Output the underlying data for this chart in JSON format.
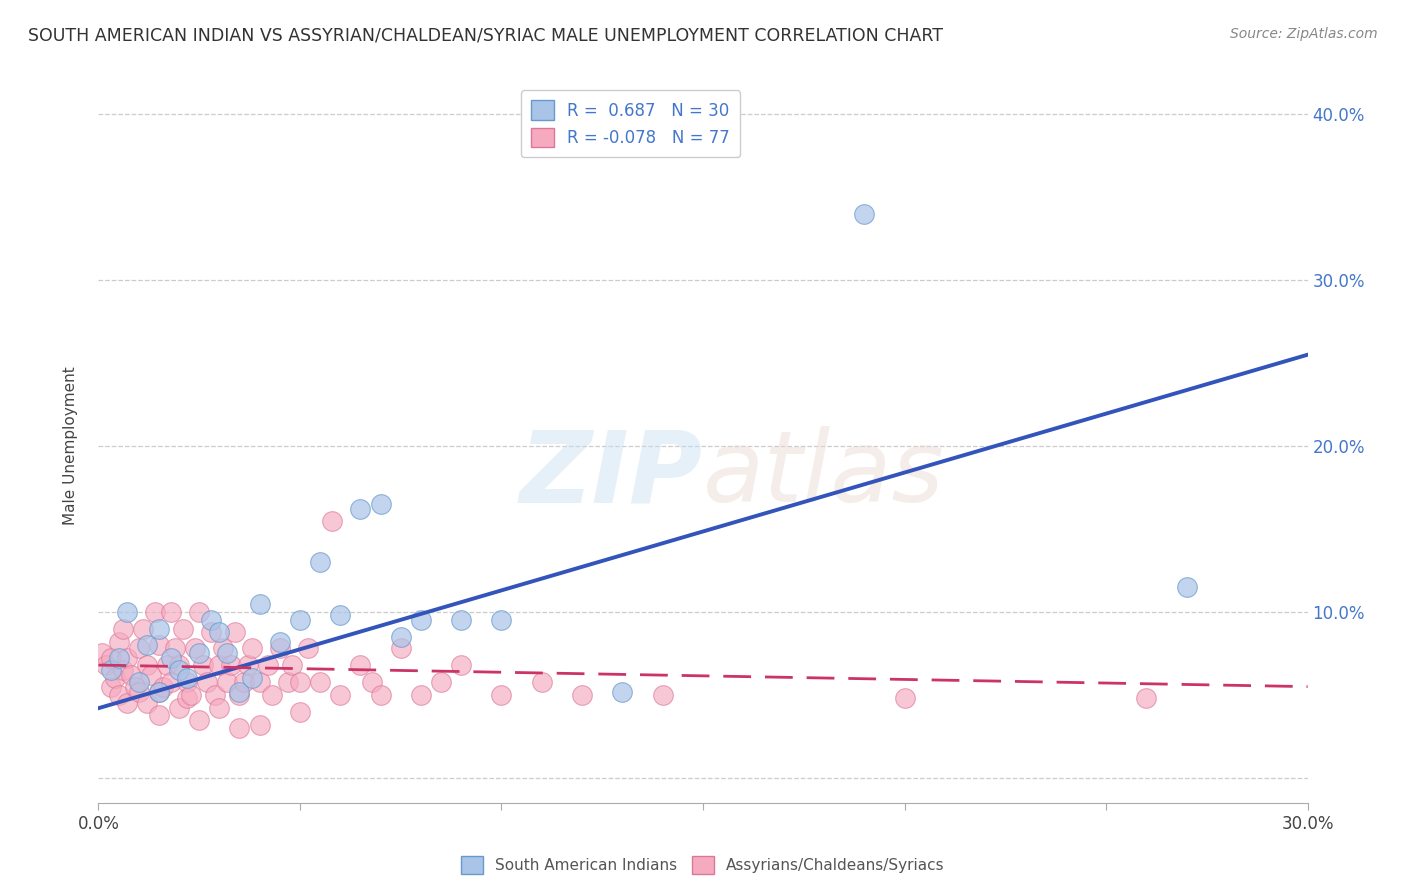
{
  "title": "SOUTH AMERICAN INDIAN VS ASSYRIAN/CHALDEAN/SYRIAC MALE UNEMPLOYMENT CORRELATION CHART",
  "source": "Source: ZipAtlas.com",
  "ylabel": "Male Unemployment",
  "xlim": [
    0.0,
    0.3
  ],
  "ylim": [
    -0.015,
    0.415
  ],
  "yticks": [
    0.0,
    0.1,
    0.2,
    0.3,
    0.4
  ],
  "xticks": [
    0.0,
    0.05,
    0.1,
    0.15,
    0.2,
    0.25,
    0.3
  ],
  "xtick_labels_left": "0.0%",
  "xtick_labels_right": "30.0%",
  "ytick_labels_right": [
    "",
    "10.0%",
    "20.0%",
    "30.0%",
    "40.0%"
  ],
  "blue_R": "0.687",
  "blue_N": "30",
  "pink_R": "-0.078",
  "pink_N": "77",
  "blue_scatter_color": "#aac4e8",
  "pink_scatter_color": "#f5aabf",
  "blue_edge_color": "#6699cc",
  "pink_edge_color": "#dd7799",
  "blue_line_color": "#3355bb",
  "pink_line_color": "#cc3366",
  "legend_label_blue": "South American Indians",
  "legend_label_pink": "Assyrians/Chaldeans/Syriacs",
  "blue_scatter": [
    [
      0.003,
      0.065
    ],
    [
      0.005,
      0.072
    ],
    [
      0.007,
      0.1
    ],
    [
      0.01,
      0.058
    ],
    [
      0.012,
      0.08
    ],
    [
      0.015,
      0.052
    ],
    [
      0.015,
      0.09
    ],
    [
      0.018,
      0.072
    ],
    [
      0.02,
      0.065
    ],
    [
      0.022,
      0.06
    ],
    [
      0.025,
      0.075
    ],
    [
      0.028,
      0.095
    ],
    [
      0.03,
      0.088
    ],
    [
      0.032,
      0.075
    ],
    [
      0.035,
      0.052
    ],
    [
      0.038,
      0.06
    ],
    [
      0.04,
      0.105
    ],
    [
      0.045,
      0.082
    ],
    [
      0.05,
      0.095
    ],
    [
      0.055,
      0.13
    ],
    [
      0.06,
      0.098
    ],
    [
      0.065,
      0.162
    ],
    [
      0.07,
      0.165
    ],
    [
      0.075,
      0.085
    ],
    [
      0.08,
      0.095
    ],
    [
      0.09,
      0.095
    ],
    [
      0.1,
      0.095
    ],
    [
      0.13,
      0.052
    ],
    [
      0.19,
      0.34
    ],
    [
      0.27,
      0.115
    ]
  ],
  "pink_scatter": [
    [
      0.001,
      0.075
    ],
    [
      0.002,
      0.068
    ],
    [
      0.003,
      0.072
    ],
    [
      0.003,
      0.055
    ],
    [
      0.004,
      0.06
    ],
    [
      0.005,
      0.082
    ],
    [
      0.005,
      0.05
    ],
    [
      0.006,
      0.09
    ],
    [
      0.006,
      0.065
    ],
    [
      0.007,
      0.072
    ],
    [
      0.007,
      0.045
    ],
    [
      0.008,
      0.062
    ],
    [
      0.009,
      0.055
    ],
    [
      0.01,
      0.078
    ],
    [
      0.01,
      0.052
    ],
    [
      0.011,
      0.09
    ],
    [
      0.012,
      0.068
    ],
    [
      0.012,
      0.045
    ],
    [
      0.013,
      0.062
    ],
    [
      0.014,
      0.1
    ],
    [
      0.015,
      0.08
    ],
    [
      0.015,
      0.052
    ],
    [
      0.015,
      0.038
    ],
    [
      0.016,
      0.055
    ],
    [
      0.017,
      0.068
    ],
    [
      0.018,
      0.058
    ],
    [
      0.018,
      0.1
    ],
    [
      0.019,
      0.078
    ],
    [
      0.02,
      0.068
    ],
    [
      0.02,
      0.042
    ],
    [
      0.021,
      0.09
    ],
    [
      0.022,
      0.058
    ],
    [
      0.022,
      0.048
    ],
    [
      0.023,
      0.05
    ],
    [
      0.024,
      0.078
    ],
    [
      0.025,
      0.1
    ],
    [
      0.025,
      0.035
    ],
    [
      0.026,
      0.068
    ],
    [
      0.027,
      0.058
    ],
    [
      0.028,
      0.088
    ],
    [
      0.029,
      0.05
    ],
    [
      0.03,
      0.068
    ],
    [
      0.03,
      0.042
    ],
    [
      0.031,
      0.078
    ],
    [
      0.032,
      0.058
    ],
    [
      0.033,
      0.068
    ],
    [
      0.034,
      0.088
    ],
    [
      0.035,
      0.05
    ],
    [
      0.035,
      0.03
    ],
    [
      0.036,
      0.058
    ],
    [
      0.037,
      0.068
    ],
    [
      0.038,
      0.078
    ],
    [
      0.04,
      0.058
    ],
    [
      0.04,
      0.032
    ],
    [
      0.042,
      0.068
    ],
    [
      0.043,
      0.05
    ],
    [
      0.045,
      0.078
    ],
    [
      0.047,
      0.058
    ],
    [
      0.048,
      0.068
    ],
    [
      0.05,
      0.058
    ],
    [
      0.05,
      0.04
    ],
    [
      0.052,
      0.078
    ],
    [
      0.055,
      0.058
    ],
    [
      0.058,
      0.155
    ],
    [
      0.06,
      0.05
    ],
    [
      0.065,
      0.068
    ],
    [
      0.068,
      0.058
    ],
    [
      0.07,
      0.05
    ],
    [
      0.075,
      0.078
    ],
    [
      0.08,
      0.05
    ],
    [
      0.085,
      0.058
    ],
    [
      0.09,
      0.068
    ],
    [
      0.1,
      0.05
    ],
    [
      0.11,
      0.058
    ],
    [
      0.12,
      0.05
    ],
    [
      0.14,
      0.05
    ],
    [
      0.2,
      0.048
    ],
    [
      0.26,
      0.048
    ]
  ],
  "blue_trendline_x": [
    0.0,
    0.3
  ],
  "blue_trendline_y": [
    0.042,
    0.255
  ],
  "pink_trendline_x": [
    0.0,
    0.3
  ],
  "pink_trendline_y": [
    0.068,
    0.055
  ],
  "background_color": "#ffffff",
  "grid_color": "#cccccc",
  "text_color": "#444444",
  "right_axis_color": "#4477cc"
}
